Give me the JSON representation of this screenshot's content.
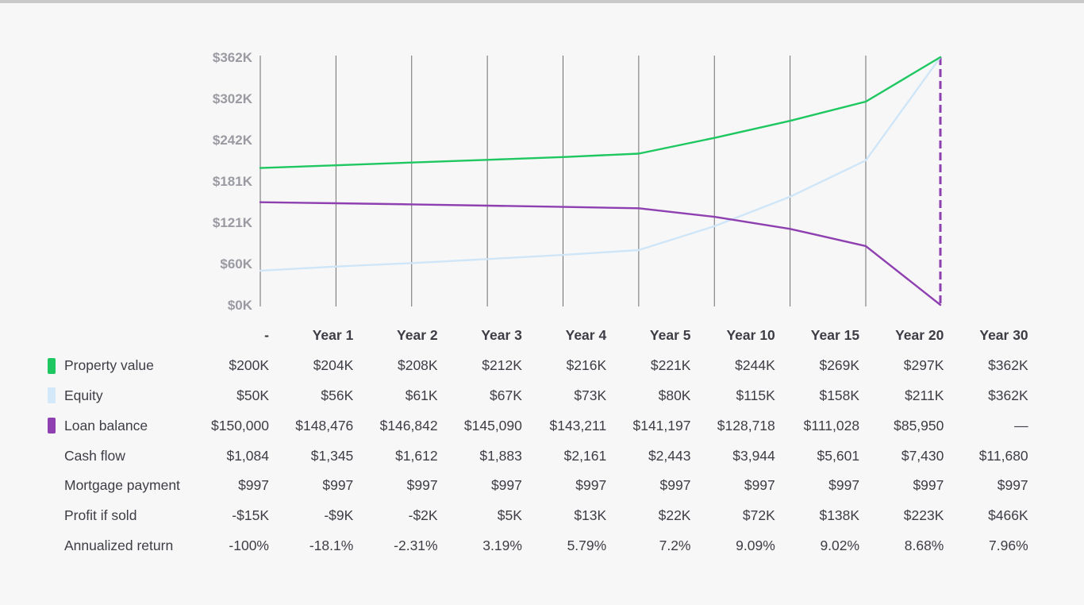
{
  "chart_data": {
    "type": "line",
    "categories": [
      "-",
      "Year 1",
      "Year 2",
      "Year 3",
      "Year 4",
      "Year 5",
      "Year 10",
      "Year 15",
      "Year 20",
      "Year 30"
    ],
    "y_ticks": [
      "$0K",
      "$60K",
      "$121K",
      "$181K",
      "$242K",
      "$302K",
      "$362K"
    ],
    "ylim": [
      0,
      362
    ],
    "y_unit": "thousands of dollars",
    "grid": "vertical",
    "highlight_category": "Year 30",
    "series": [
      {
        "name": "Property value",
        "color": "#1ec760",
        "values": [
          200,
          204,
          208,
          212,
          216,
          221,
          244,
          269,
          297,
          362
        ]
      },
      {
        "name": "Equity",
        "color": "#cfe6f8",
        "values": [
          50,
          56,
          61,
          67,
          73,
          80,
          115,
          158,
          211,
          362
        ]
      },
      {
        "name": "Loan balance",
        "color": "#8e3fb0",
        "values": [
          150,
          148.476,
          146.842,
          145.09,
          143.211,
          141.197,
          128.718,
          111.028,
          85.95,
          0
        ]
      }
    ]
  },
  "table": {
    "header_first": "-",
    "columns": [
      "Year 1",
      "Year 2",
      "Year 3",
      "Year 4",
      "Year 5",
      "Year 10",
      "Year 15",
      "Year 20",
      "Year 30"
    ],
    "rows": [
      {
        "label": "Property value",
        "swatch": "#1ec760",
        "values": [
          "$200K",
          "$204K",
          "$208K",
          "$212K",
          "$216K",
          "$221K",
          "$244K",
          "$269K",
          "$297K",
          "$362K"
        ]
      },
      {
        "label": "Equity",
        "swatch": "#d3e8f9",
        "values": [
          "$50K",
          "$56K",
          "$61K",
          "$67K",
          "$73K",
          "$80K",
          "$115K",
          "$158K",
          "$211K",
          "$362K"
        ]
      },
      {
        "label": "Loan balance",
        "swatch": "#8e3fb0",
        "values": [
          "$150,000",
          "$148,476",
          "$146,842",
          "$145,090",
          "$143,211",
          "$141,197",
          "$128,718",
          "$111,028",
          "$85,950",
          "—"
        ]
      },
      {
        "label": "Cash flow",
        "swatch": "",
        "values": [
          "$1,084",
          "$1,345",
          "$1,612",
          "$1,883",
          "$2,161",
          "$2,443",
          "$3,944",
          "$5,601",
          "$7,430",
          "$11,680"
        ]
      },
      {
        "label": "Mortgage payment",
        "swatch": "",
        "values": [
          "$997",
          "$997",
          "$997",
          "$997",
          "$997",
          "$997",
          "$997",
          "$997",
          "$997",
          "$997"
        ]
      },
      {
        "label": "Profit if sold",
        "swatch": "",
        "values": [
          "-$15K",
          "-$9K",
          "-$2K",
          "$5K",
          "$13K",
          "$22K",
          "$72K",
          "$138K",
          "$223K",
          "$466K"
        ]
      },
      {
        "label": "Annualized return",
        "swatch": "",
        "values": [
          "-100%",
          "-18.1%",
          "-2.31%",
          "3.19%",
          "5.79%",
          "7.2%",
          "9.09%",
          "9.02%",
          "8.68%",
          "7.96%"
        ]
      }
    ]
  }
}
